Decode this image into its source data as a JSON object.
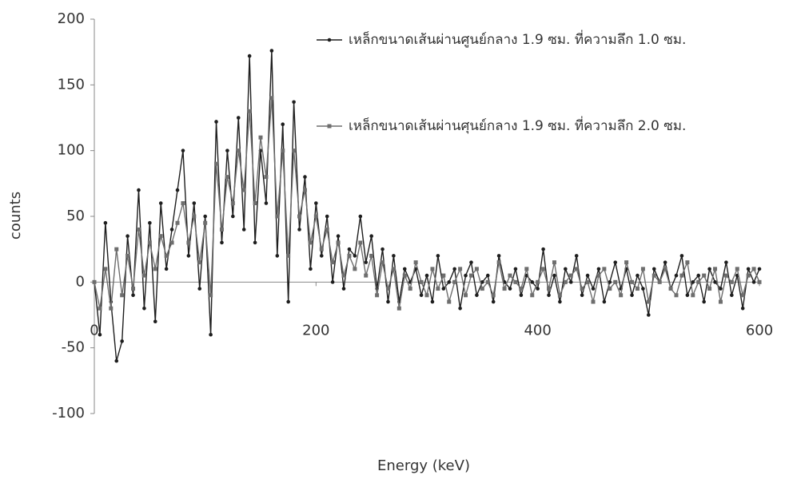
{
  "chart_data": {
    "type": "line",
    "xlabel": "Energy (keV)",
    "ylabel": "counts",
    "xlim": [
      0,
      600
    ],
    "ylim": [
      -100,
      200
    ],
    "xticks": [
      0,
      200,
      400,
      600
    ],
    "yticks": [
      -100,
      -50,
      0,
      50,
      100,
      150,
      200
    ],
    "legend": "upper right",
    "x": [
      0,
      5,
      10,
      15,
      20,
      25,
      30,
      35,
      40,
      45,
      50,
      55,
      60,
      65,
      70,
      75,
      80,
      85,
      90,
      95,
      100,
      105,
      110,
      115,
      120,
      125,
      130,
      135,
      140,
      145,
      150,
      155,
      160,
      165,
      170,
      175,
      180,
      185,
      190,
      195,
      200,
      205,
      210,
      215,
      220,
      225,
      230,
      235,
      240,
      245,
      250,
      255,
      260,
      265,
      270,
      275,
      280,
      285,
      290,
      295,
      300,
      305,
      310,
      315,
      320,
      325,
      330,
      335,
      340,
      345,
      350,
      355,
      360,
      365,
      370,
      375,
      380,
      385,
      390,
      395,
      400,
      405,
      410,
      415,
      420,
      425,
      430,
      435,
      440,
      445,
      450,
      455,
      460,
      465,
      470,
      475,
      480,
      485,
      490,
      495,
      500,
      505,
      510,
      515,
      520,
      525,
      530,
      535,
      540,
      545,
      550,
      555,
      560,
      565,
      570,
      575,
      580,
      585,
      590,
      595,
      600
    ],
    "series": [
      {
        "name": "เหล็กขนาดเส้นผ่านศูนย์กลาง 1.9 ซม. ที่ความลึก 1.0 ซม.",
        "color": "#1e1e1e",
        "marker": "circle",
        "values": [
          0,
          -40,
          45,
          -15,
          -60,
          -45,
          35,
          -10,
          70,
          -20,
          45,
          -30,
          60,
          10,
          40,
          70,
          100,
          20,
          60,
          -5,
          50,
          -40,
          122,
          30,
          100,
          50,
          125,
          40,
          172,
          30,
          100,
          60,
          176,
          20,
          120,
          -15,
          137,
          40,
          80,
          10,
          60,
          20,
          50,
          0,
          35,
          -5,
          25,
          20,
          50,
          15,
          35,
          -5,
          25,
          -15,
          20,
          -15,
          10,
          0,
          10,
          -10,
          5,
          -15,
          20,
          -5,
          0,
          10,
          -20,
          5,
          15,
          -10,
          0,
          5,
          -15,
          20,
          0,
          -5,
          10,
          -10,
          5,
          0,
          -5,
          25,
          -10,
          5,
          -15,
          10,
          0,
          20,
          -10,
          5,
          -5,
          10,
          -15,
          0,
          15,
          -5,
          10,
          -10,
          5,
          -5,
          -25,
          10,
          0,
          15,
          -5,
          5,
          20,
          -10,
          0,
          5,
          -15,
          10,
          0,
          -5,
          15,
          -10,
          5,
          -20,
          10,
          0,
          10
        ]
      },
      {
        "name": "เหล็กขนาดเส้นผ่านศุนย์กลาง 1.9 ซม. ที่ความลึก 2.0 ซม.",
        "color": "#6e6e6e",
        "marker": "square",
        "values": [
          0,
          -20,
          10,
          -20,
          25,
          -10,
          20,
          -5,
          40,
          5,
          30,
          10,
          35,
          20,
          30,
          45,
          60,
          30,
          50,
          15,
          45,
          -10,
          90,
          40,
          80,
          60,
          100,
          70,
          130,
          60,
          110,
          80,
          140,
          50,
          100,
          20,
          100,
          50,
          70,
          30,
          50,
          25,
          40,
          15,
          30,
          5,
          20,
          10,
          30,
          5,
          20,
          -10,
          15,
          -5,
          10,
          -20,
          5,
          -5,
          15,
          0,
          -10,
          10,
          -5,
          5,
          -15,
          0,
          10,
          -10,
          5,
          10,
          -5,
          0,
          -10,
          15,
          -5,
          5,
          0,
          -5,
          10,
          -10,
          0,
          10,
          -5,
          15,
          -10,
          0,
          5,
          10,
          -5,
          0,
          -15,
          5,
          10,
          -5,
          0,
          -10,
          15,
          0,
          -5,
          10,
          -15,
          5,
          0,
          10,
          -5,
          -10,
          5,
          15,
          -10,
          0,
          5,
          -5,
          10,
          -15,
          5,
          0,
          10,
          -10,
          5,
          10,
          0
        ]
      }
    ]
  }
}
